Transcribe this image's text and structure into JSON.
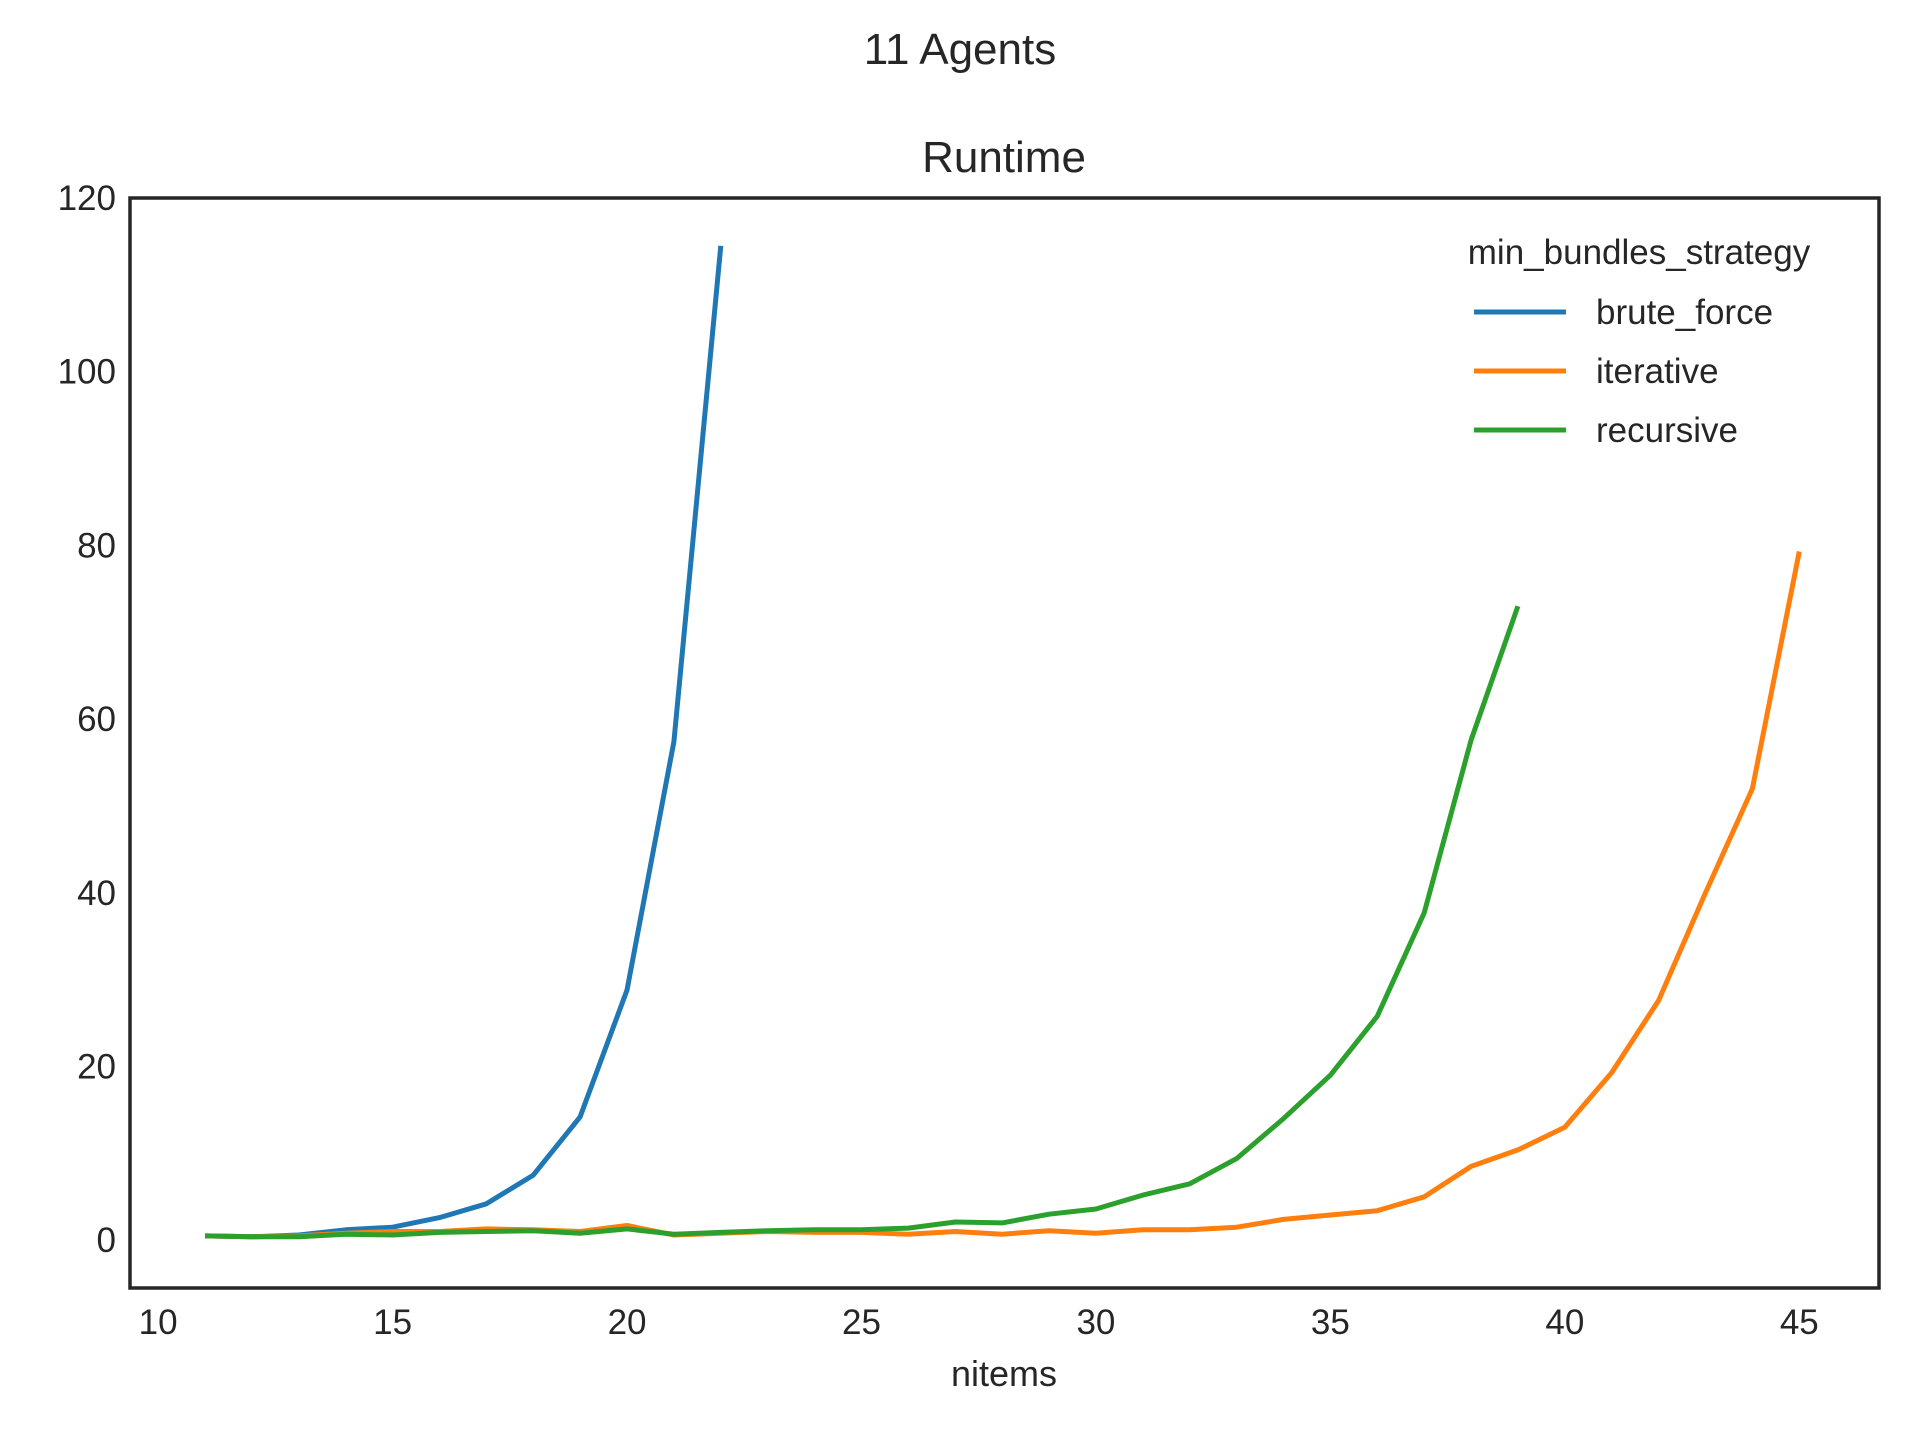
{
  "figure": {
    "suptitle": "11 Agents"
  },
  "chart_data": {
    "type": "line",
    "title": "Runtime",
    "xlabel": "nitems",
    "ylabel": "",
    "xlim": [
      9.4,
      46.7
    ],
    "ylim": [
      -5.5,
      120
    ],
    "x_ticks": [
      10,
      15,
      20,
      25,
      30,
      35,
      40,
      45
    ],
    "y_ticks": [
      0,
      20,
      40,
      60,
      80,
      100,
      120
    ],
    "grid": false,
    "legend": {
      "title": "min_bundles_strategy",
      "placement": "top-right"
    },
    "series": [
      {
        "name": "brute_force",
        "color": "#1f77b4",
        "x": [
          11,
          12,
          13,
          14,
          15,
          16,
          17,
          18,
          19,
          20,
          21,
          22
        ],
        "y": [
          0.5,
          0.4,
          0.6,
          1.2,
          1.5,
          2.6,
          4.2,
          7.5,
          14.2,
          28.8,
          57.4,
          114.5
        ]
      },
      {
        "name": "iterative",
        "color": "#ff7f0e",
        "x": [
          11,
          12,
          13,
          14,
          15,
          16,
          17,
          18,
          19,
          20,
          21,
          22,
          23,
          24,
          25,
          26,
          27,
          28,
          29,
          30,
          31,
          32,
          33,
          34,
          35,
          36,
          37,
          38,
          39,
          40,
          41,
          42,
          43,
          44,
          45
        ],
        "y": [
          0.5,
          0.4,
          0.5,
          0.8,
          1.0,
          1.0,
          1.3,
          1.2,
          1.0,
          1.7,
          0.6,
          0.8,
          1.0,
          0.9,
          0.9,
          0.7,
          1.0,
          0.7,
          1.1,
          0.8,
          1.2,
          1.2,
          1.5,
          2.4,
          2.9,
          3.4,
          5.0,
          8.5,
          10.4,
          13.0,
          19.3,
          27.6,
          40.0,
          52.0,
          79.3
        ]
      },
      {
        "name": "recursive",
        "color": "#2ca02c",
        "x": [
          11,
          12,
          13,
          14,
          15,
          16,
          17,
          18,
          19,
          20,
          21,
          22,
          23,
          24,
          25,
          26,
          27,
          28,
          29,
          30,
          31,
          32,
          33,
          34,
          35,
          36,
          37,
          38,
          39
        ],
        "y": [
          0.5,
          0.4,
          0.4,
          0.7,
          0.6,
          0.9,
          1.0,
          1.1,
          0.8,
          1.3,
          0.7,
          0.9,
          1.1,
          1.2,
          1.2,
          1.4,
          2.1,
          2.0,
          3.0,
          3.6,
          5.2,
          6.5,
          9.4,
          14.0,
          19.0,
          25.8,
          37.7,
          57.6,
          73.0
        ]
      }
    ]
  }
}
